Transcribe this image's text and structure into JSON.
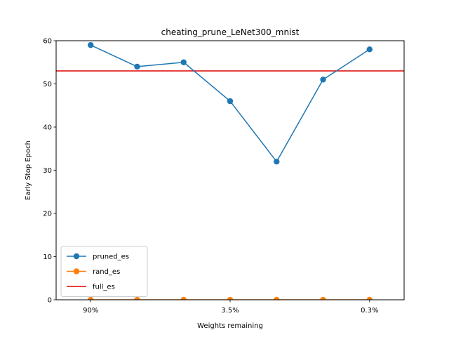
{
  "chart_data": {
    "type": "line",
    "title": "cheating_prune_LeNet300_mnist",
    "xlabel": "Weights remaining",
    "ylabel": "Early Stop Epoch",
    "ylim": [
      0,
      60
    ],
    "y_ticks": [
      0,
      10,
      20,
      30,
      40,
      50,
      60
    ],
    "x_ticks": [
      {
        "index": 0,
        "label": "90%"
      },
      {
        "index": 3,
        "label": "3.5%"
      },
      {
        "index": 6,
        "label": "0.3%"
      }
    ],
    "x_count": 7,
    "grid": false,
    "legend_location": "lower-left",
    "series": [
      {
        "name": "pruned_es",
        "color": "#1f77b4",
        "marker": "circle",
        "values": [
          59,
          54,
          55,
          46,
          32,
          51,
          58
        ]
      },
      {
        "name": "rand_es",
        "color": "#ff7f0e",
        "marker": "circle",
        "values": [
          0,
          0,
          0,
          0,
          0,
          0,
          0
        ]
      }
    ],
    "hlines": [
      {
        "name": "full_es",
        "color": "#e00000",
        "value": 53
      }
    ]
  }
}
